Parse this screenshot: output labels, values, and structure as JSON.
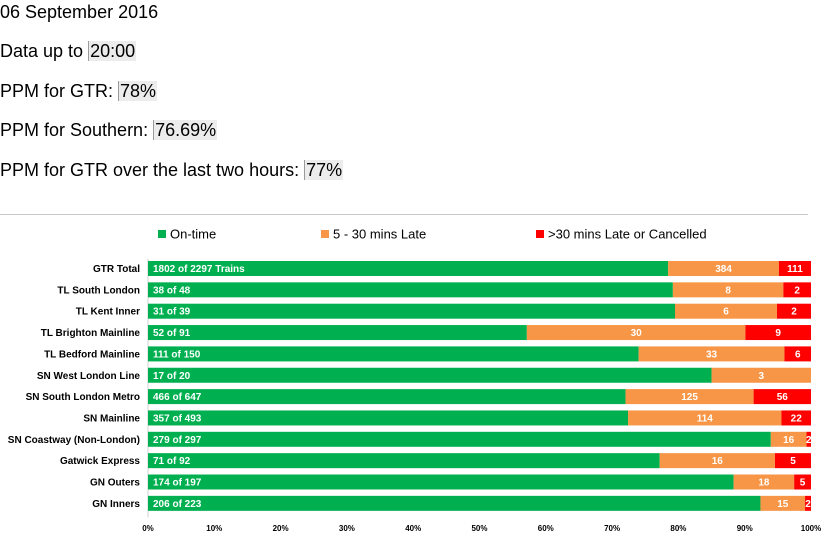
{
  "info": {
    "date": "06 September 2016",
    "data_up_to": {
      "label": "Data up to ",
      "value": "20:00"
    },
    "ppm_gtr": {
      "label": "PPM for GTR: ",
      "value": "78%"
    },
    "ppm_southern": {
      "label": "PPM for Southern: ",
      "value": "76.69%"
    },
    "ppm_gtr_two_hours": {
      "label": "PPM for GTR over the last two hours: ",
      "value": "77%"
    }
  },
  "colors": {
    "on_time": "#00b050",
    "late": "#f79646",
    "very_late": "#ff0000"
  },
  "chart_data": {
    "type": "bar",
    "orientation": "horizontal",
    "stacked": "percent",
    "title": "",
    "xlabel": "",
    "ylabel": "",
    "xlim": [
      0,
      100
    ],
    "x_ticks": [
      "0%",
      "10%",
      "20%",
      "30%",
      "40%",
      "50%",
      "60%",
      "70%",
      "80%",
      "90%",
      "100%"
    ],
    "grid": false,
    "legend": "top",
    "categories": [
      "GTR Total",
      "TL South London",
      "TL Kent Inner",
      "TL Brighton Mainline",
      "TL Bedford Mainline",
      "SN West London Line",
      "SN South London Metro",
      "SN Mainline",
      "SN Coastway (Non-London)",
      "Gatwick Express",
      "GN Outers",
      "GN Inners"
    ],
    "series": [
      {
        "name": "On-time",
        "color": "#00b050",
        "values": [
          1802,
          38,
          31,
          52,
          111,
          17,
          466,
          357,
          279,
          71,
          174,
          206
        ],
        "labels": [
          "1802 of 2297 Trains",
          "38 of 48",
          "31 of 39",
          "52 of 91",
          "111 of 150",
          "17 of 20",
          "466 of 647",
          "357 of 493",
          "279 of 297",
          "71 of 92",
          "174 of 197",
          "206 of 223"
        ]
      },
      {
        "name": "5 - 30 mins Late",
        "color": "#f79646",
        "values": [
          384,
          8,
          6,
          30,
          33,
          3,
          125,
          114,
          16,
          16,
          18,
          15
        ],
        "labels": [
          "384",
          "8",
          "6",
          "30",
          "33",
          "3",
          "125",
          "114",
          "16",
          "16",
          "18",
          "15"
        ]
      },
      {
        "name": ">30 mins Late or Cancelled",
        "color": "#ff0000",
        "values": [
          111,
          2,
          2,
          9,
          6,
          0,
          56,
          22,
          2,
          5,
          5,
          2
        ],
        "labels": [
          "111",
          "2",
          "2",
          "9",
          "6",
          "",
          "56",
          "22",
          "2",
          "5",
          "5",
          "2"
        ]
      }
    ]
  }
}
